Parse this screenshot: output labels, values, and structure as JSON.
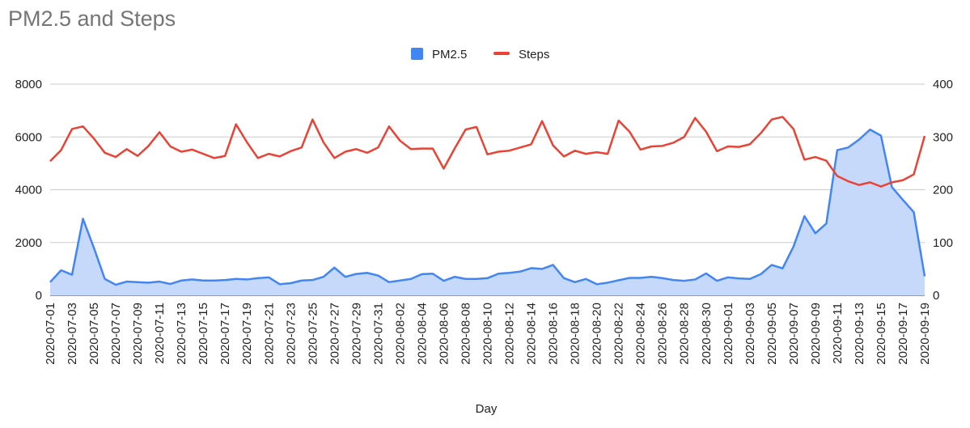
{
  "chart_data": {
    "type": "area+line",
    "title": "PM2.5 and Steps",
    "xlabel": "Day",
    "ylabel_left": "",
    "ylabel_right": "",
    "ylim_left": [
      0,
      8000
    ],
    "ylim_right": [
      0,
      400
    ],
    "yticks_left": [
      "0",
      "2000",
      "4000",
      "6000",
      "8000"
    ],
    "yticks_right": [
      "0",
      "100",
      "200",
      "300",
      "400"
    ],
    "grid": true,
    "legend_position": "top",
    "x_tick_labels": [
      "2020-07-01",
      "2020-07-03",
      "2020-07-05",
      "2020-07-07",
      "2020-07-09",
      "2020-07-11",
      "2020-07-13",
      "2020-07-15",
      "2020-07-17",
      "2020-07-19",
      "2020-07-21",
      "2020-07-23",
      "2020-07-25",
      "2020-07-27",
      "2020-07-29",
      "2020-07-31",
      "2020-08-02",
      "2020-08-04",
      "2020-08-06",
      "2020-08-08",
      "2020-08-10",
      "2020-08-12",
      "2020-08-14",
      "2020-08-16",
      "2020-08-18",
      "2020-08-20",
      "2020-08-22",
      "2020-08-24",
      "2020-08-26",
      "2020-08-28",
      "2020-08-30",
      "2020-09-01",
      "2020-09-03",
      "2020-09-05",
      "2020-09-07",
      "2020-09-09",
      "2020-09-11",
      "2020-09-13",
      "2020-09-15",
      "2020-09-17",
      "2020-09-19"
    ],
    "x_start": "2020-07-01",
    "x_end": "2020-09-19",
    "series": [
      {
        "name": "PM2.5",
        "type": "area",
        "axis": "left",
        "color": "#4285f4",
        "fill": "#c6d9fb",
        "values": [
          500,
          950,
          780,
          2900,
          1800,
          620,
          400,
          520,
          500,
          480,
          520,
          430,
          560,
          600,
          560,
          560,
          580,
          620,
          600,
          650,
          680,
          420,
          460,
          560,
          580,
          700,
          1050,
          700,
          810,
          850,
          750,
          500,
          560,
          620,
          800,
          820,
          550,
          700,
          620,
          620,
          650,
          820,
          850,
          900,
          1030,
          1000,
          1150,
          650,
          500,
          620,
          420,
          480,
          570,
          660,
          660,
          700,
          650,
          580,
          550,
          600,
          830,
          550,
          680,
          640,
          620,
          800,
          1150,
          1020,
          1850,
          3000,
          2350,
          2720,
          5500,
          5600,
          5900,
          6280,
          6050,
          4100,
          3620,
          3150,
          720
        ]
      },
      {
        "name": "Steps",
        "type": "line",
        "axis": "right",
        "color": "#ea4335",
        "values": [
          254,
          275,
          315,
          320,
          297,
          270,
          262,
          277,
          264,
          283,
          309,
          282,
          272,
          276,
          268,
          260,
          264,
          324,
          290,
          260,
          268,
          263,
          273,
          280,
          333,
          290,
          260,
          272,
          277,
          270,
          280,
          320,
          293,
          277,
          278,
          278,
          240,
          278,
          314,
          319,
          267,
          272,
          274,
          280,
          286,
          330,
          284,
          263,
          274,
          268,
          271,
          268,
          331,
          310,
          276,
          282,
          283,
          289,
          300,
          336,
          310,
          273,
          282,
          281,
          286,
          307,
          333,
          338,
          315,
          257,
          262,
          255,
          226,
          216,
          209,
          214,
          206,
          214,
          218,
          229,
          302
        ]
      }
    ]
  }
}
